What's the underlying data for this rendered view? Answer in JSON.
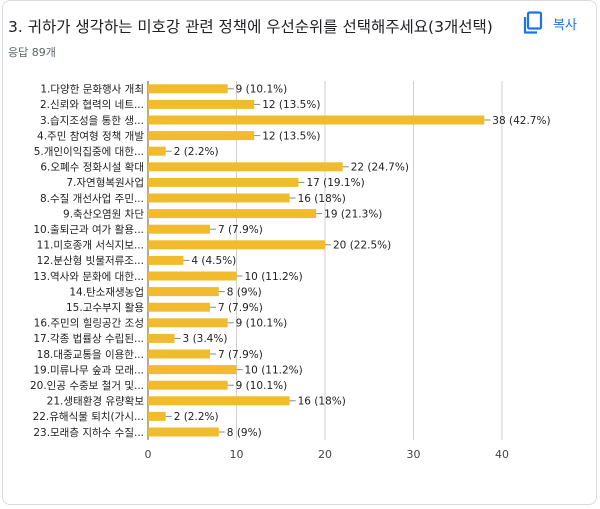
{
  "header": {
    "title": "3. 귀하가 생각하는 미호강 관련 정책에 우선순위를 선택해주세요(3개선택)",
    "copy_label": "복사",
    "copy_icon": "copy-icon",
    "responses": "응답 89개"
  },
  "colors": {
    "bar": "#f0bb2d",
    "accent": "#1a73e8"
  },
  "chart_data": {
    "type": "bar",
    "orientation": "horizontal",
    "categories": [
      "1.다양한 문화행사 개최",
      "2.신뢰와 협력의 네트...",
      "3.습지조성을 통한 생...",
      "4.주민 참여형 정책 개발",
      "5.개인이익집중에 대한...",
      "6.오폐수 정화시설 확대",
      "7.자연형복원사업",
      "8.수질 개선사업 주민...",
      "9.축산오염원 차단",
      "10.출퇴근과 여가 활용...",
      "11.미호종개 서식지보...",
      "12.분산형 빗물저류조...",
      "13.역사와 문화에 대한...",
      "14.탄소재생농업",
      "15.고수부지 활용",
      "16.주민의 힐링공간 조성",
      "17.각종 법률상 수립된...",
      "18.대중교통을 이용한...",
      "19.미류나무 숲과 모래...",
      "20.인공 수중보 철거 및...",
      "21.생태환경 유량확보",
      "22.유해식물 퇴치(가시...",
      "23.모래층 지하수 수질..."
    ],
    "values": [
      9,
      12,
      38,
      12,
      2,
      22,
      17,
      16,
      19,
      7,
      20,
      4,
      10,
      8,
      7,
      9,
      3,
      7,
      10,
      9,
      16,
      2,
      8
    ],
    "value_labels": [
      "9 (10.1%)",
      "12 (13.5%)",
      "38 (42.7%)",
      "12 (13.5%)",
      "2 (2.2%)",
      "22 (24.7%)",
      "17 (19.1%)",
      "16 (18%)",
      "19 (21.3%)",
      "7 (7.9%)",
      "20 (22.5%)",
      "4 (4.5%)",
      "10 (11.2%)",
      "8 (9%)",
      "7 (7.9%)",
      "9 (10.1%)",
      "3 (3.4%)",
      "7 (7.9%)",
      "10 (11.2%)",
      "9 (10.1%)",
      "16 (18%)",
      "2 (2.2%)",
      "8 (9%)"
    ],
    "xlim": [
      0,
      40
    ],
    "xticks": [
      0,
      10,
      20,
      30,
      40
    ],
    "xtick_labels": [
      "0",
      "10",
      "20",
      "30",
      "40"
    ],
    "grid": true
  }
}
